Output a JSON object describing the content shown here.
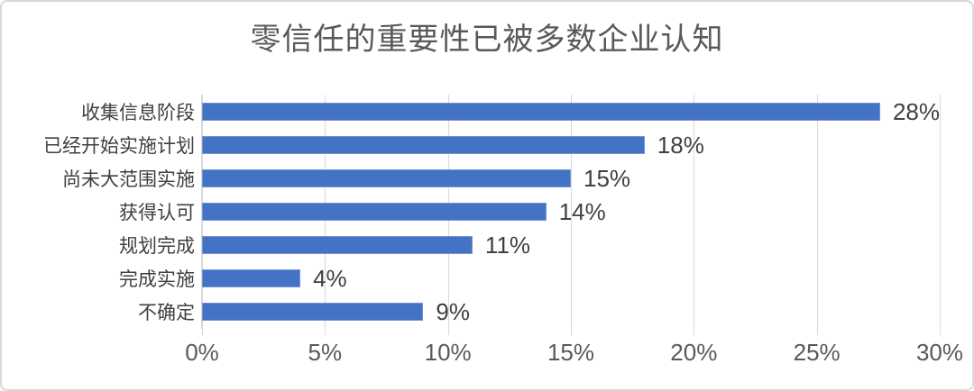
{
  "card": {
    "background": "#ffffff",
    "border_color": "#d9d9d9"
  },
  "chart_data": {
    "type": "bar",
    "orientation": "horizontal",
    "title": "零信任的重要性已被多数企业认知",
    "categories": [
      "收集信息阶段",
      "已经开始实施计划",
      "尚未大范围实施",
      "获得认可",
      "规划完成",
      "完成实施",
      "不确定"
    ],
    "values": [
      28,
      18,
      15,
      14,
      11,
      4,
      9
    ],
    "data_labels": [
      "28%",
      "18%",
      "15%",
      "14%",
      "11%",
      "4%",
      "9%"
    ],
    "x_ticks": [
      "0%",
      "5%",
      "10%",
      "15%",
      "20%",
      "25%",
      "30%"
    ],
    "x_tick_values": [
      0,
      5,
      10,
      15,
      20,
      25,
      30
    ],
    "xlim": [
      0,
      30
    ],
    "xlabel": "",
    "ylabel": "",
    "grid": "vertical",
    "legend": "none",
    "colors": {
      "bar": "#4472c4",
      "gridline": "#d9d9d9",
      "title_text": "#595959",
      "axis_text": "#595959",
      "category_text": "#404040",
      "value_text": "#404040"
    }
  }
}
